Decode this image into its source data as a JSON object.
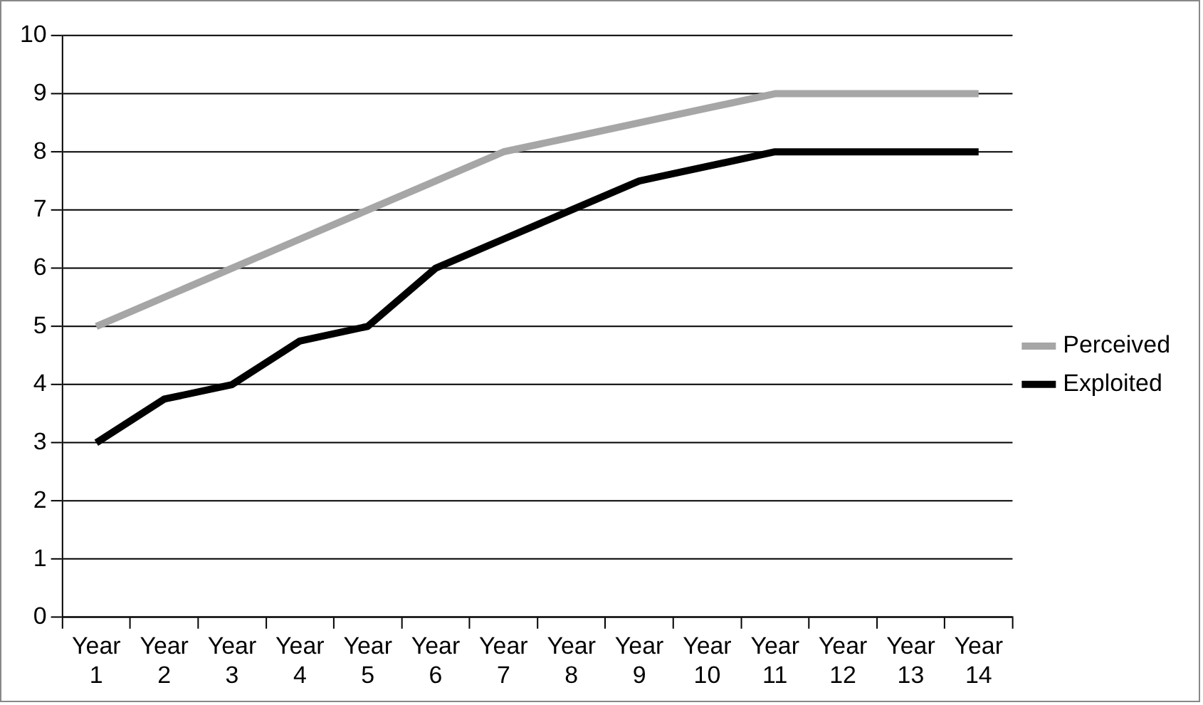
{
  "chart_data": {
    "type": "line",
    "categories": [
      "Year 1",
      "Year 2",
      "Year 3",
      "Year 4",
      "Year 5",
      "Year 6",
      "Year 7",
      "Year 8",
      "Year 9",
      "Year 10",
      "Year 11",
      "Year 12",
      "Year 13",
      "Year 14"
    ],
    "series": [
      {
        "name": "Perceived",
        "color": "#a6a6a6",
        "values": [
          5,
          5.5,
          6,
          6.5,
          7,
          7.5,
          8,
          8.25,
          8.5,
          8.75,
          9,
          9,
          9,
          9
        ]
      },
      {
        "name": "Exploited",
        "color": "#000000",
        "values": [
          3,
          3.75,
          4,
          4.75,
          5,
          6,
          6.5,
          7,
          7.5,
          7.75,
          8,
          8,
          8,
          8
        ]
      }
    ],
    "ylim": [
      0,
      10
    ],
    "yticks": [
      0,
      1,
      2,
      3,
      4,
      5,
      6,
      7,
      8,
      9,
      10
    ],
    "grid": "y",
    "legend": "right",
    "marker": "none",
    "line_style": "solid"
  }
}
